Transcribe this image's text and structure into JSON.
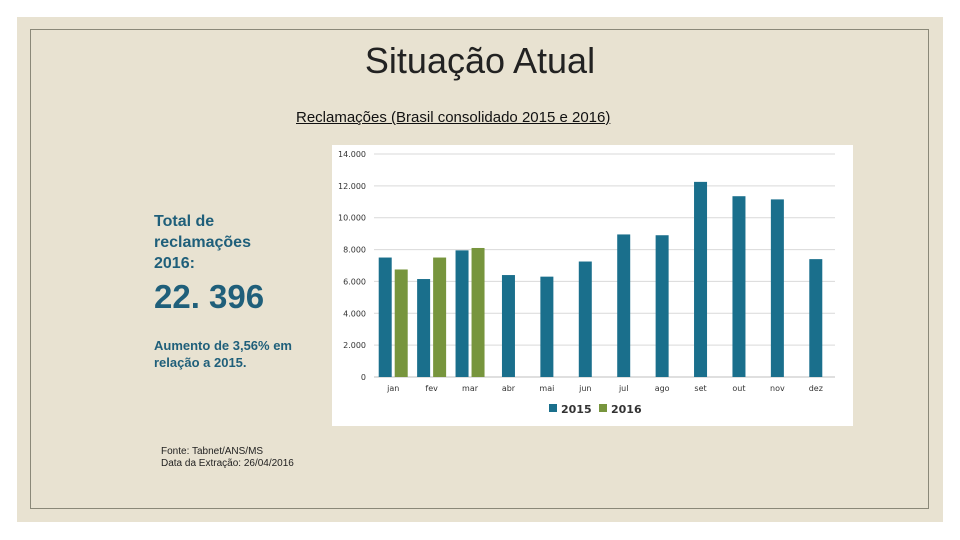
{
  "slide": {
    "title": "Situação Atual",
    "total_label": "Total de reclamações 2016:",
    "total_value": "22. 396",
    "increase_text": "Aumento de 3,56% em relação a 2015.",
    "source_line1": "Fonte: Tabnet/ANS/MS",
    "source_line2": "Data da Extração: 26/04/2016"
  },
  "colors": {
    "series_2015": "#1a6f8c",
    "series_2016": "#77953d",
    "gridline": "#d9d9d9"
  },
  "chart_data": {
    "type": "bar",
    "title": "Reclamações (Brasil consolidado 2015 e 2016)",
    "categories": [
      "jan",
      "fev",
      "mar",
      "abr",
      "mai",
      "jun",
      "jul",
      "ago",
      "set",
      "out",
      "nov",
      "dez"
    ],
    "ylim": [
      0,
      14000
    ],
    "yticks": [
      "14.000",
      "12.000",
      "10.000",
      "8.000",
      "6.000",
      "4.000",
      "2.000",
      "0"
    ],
    "grid": true,
    "legend_position": "bottom",
    "series": [
      {
        "name": "2015",
        "values": [
          7500,
          6150,
          7950,
          6400,
          6300,
          7250,
          8950,
          8900,
          12250,
          11350,
          11150,
          7400
        ]
      },
      {
        "name": "2016",
        "values": [
          6750,
          7500,
          8100,
          null,
          null,
          null,
          null,
          null,
          null,
          null,
          null,
          null
        ]
      }
    ]
  }
}
